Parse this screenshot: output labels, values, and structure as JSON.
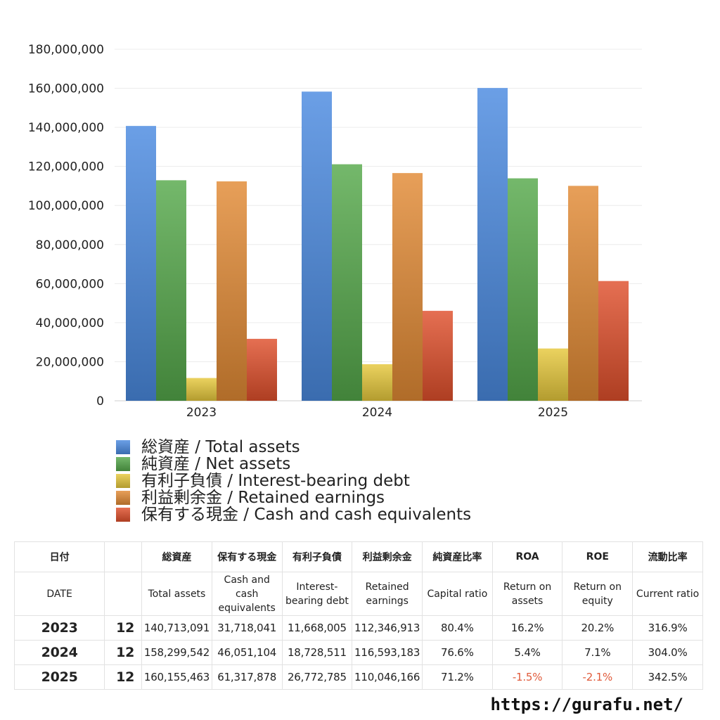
{
  "chart_data": {
    "type": "bar",
    "categories": [
      "2023",
      "2024",
      "2025"
    ],
    "series": [
      {
        "name": "総資産 / Total assets",
        "values": [
          140713091,
          158299542,
          160155463
        ],
        "color": "#4a8ae0"
      },
      {
        "name": "純資産 / Net assets",
        "values": [
          112908000,
          121100000,
          113900000
        ],
        "color": "#55a84a"
      },
      {
        "name": "有利子負債 / Interest-bearing debt",
        "values": [
          11668005,
          18728511,
          26772785
        ],
        "color": "#e6c83c"
      },
      {
        "name": "利益剰余金 / Retained earnings",
        "values": [
          112346913,
          116593183,
          110046166
        ],
        "color": "#e28a34"
      },
      {
        "name": "保有する現金 /  Cash and cash equivalents",
        "values": [
          31718041,
          46051104,
          61317878
        ],
        "color": "#df4f2c"
      }
    ],
    "yticks": [
      "0",
      "20,000,000",
      "40,000,000",
      "60,000,000",
      "80,000,000",
      "100,000,000",
      "120,000,000",
      "140,000,000",
      "160,000,000",
      "180,000,000"
    ],
    "ylim": [
      0,
      180000000
    ],
    "grid": true,
    "legend_position": "bottom"
  },
  "table": {
    "headers_ja": [
      "日付",
      "",
      "総資産",
      "保有する現金",
      "有利子負債",
      "利益剰余金",
      "純資産比率",
      "ROA",
      "ROE",
      "流動比率"
    ],
    "headers_en": [
      "DATE",
      "",
      "Total assets",
      "Cash and cash equivalents",
      "Interest-bearing debt",
      "Retained earnings",
      "Capital ratio",
      "Return on assets",
      "Return on equity",
      "Current ratio"
    ],
    "rows": [
      {
        "year": "2023",
        "month": "12",
        "total_assets": "140,713,091",
        "cash": "31,718,041",
        "debt": "11,668,005",
        "retained": "112,346,913",
        "capital_ratio": "80.4%",
        "roa": "16.2%",
        "roe": "20.2%",
        "current_ratio": "316.9%"
      },
      {
        "year": "2024",
        "month": "12",
        "total_assets": "158,299,542",
        "cash": "46,051,104",
        "debt": "18,728,511",
        "retained": "116,593,183",
        "capital_ratio": "76.6%",
        "roa": "5.4%",
        "roe": "7.1%",
        "current_ratio": "304.0%"
      },
      {
        "year": "2025",
        "month": "12",
        "total_assets": "160,155,463",
        "cash": "61,317,878",
        "debt": "26,772,785",
        "retained": "110,046,166",
        "capital_ratio": "71.2%",
        "roa": "-1.5%",
        "roe": "-2.1%",
        "current_ratio": "342.5%"
      }
    ],
    "negative_color": "#e05a3a"
  },
  "footer": {
    "url": "https://gurafu.net/"
  }
}
